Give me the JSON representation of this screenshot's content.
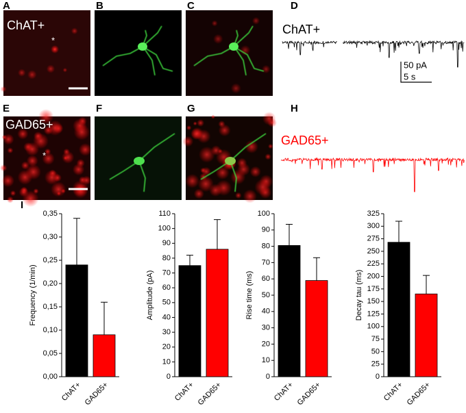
{
  "panels": {
    "labels": [
      "A",
      "B",
      "C",
      "D",
      "E",
      "F",
      "G",
      "H",
      "I"
    ],
    "chat_image_label": "ChAT+",
    "gad_image_label": "GAD65+",
    "chat_trace_label": "ChAT+",
    "gad_trace_label": "GAD65+",
    "asterisks": [
      "*",
      "*"
    ],
    "scale_current": "50 pA",
    "scale_time": "5 s"
  },
  "chart_data": [
    {
      "type": "bar",
      "y_label": "Frequency (1/min)",
      "categories": [
        "ChAT+",
        "GAD65+"
      ],
      "values": [
        0.24,
        0.09
      ],
      "errors": [
        0.1,
        0.07
      ],
      "colors": [
        "#000000",
        "#ff0000"
      ],
      "ylim": [
        0,
        0.35
      ],
      "yticks": [
        {
          "value": 0,
          "label": "0,00"
        },
        {
          "value": 0.05,
          "label": "0,05"
        },
        {
          "value": 0.1,
          "label": "0,10"
        },
        {
          "value": 0.15,
          "label": "0,15"
        },
        {
          "value": 0.2,
          "label": "0,20"
        },
        {
          "value": 0.25,
          "label": "0,25"
        },
        {
          "value": 0.3,
          "label": "0,30"
        },
        {
          "value": 0.35,
          "label": "0,35"
        }
      ]
    },
    {
      "type": "bar",
      "y_label": "Amplitude (pA)",
      "categories": [
        "ChAT+",
        "GAD65+"
      ],
      "values": [
        75,
        86
      ],
      "errors": [
        7,
        20
      ],
      "colors": [
        "#000000",
        "#ff0000"
      ],
      "ylim": [
        0,
        110
      ],
      "yticks": [
        0,
        10,
        20,
        30,
        40,
        50,
        60,
        70,
        80,
        90,
        100,
        110
      ]
    },
    {
      "type": "bar",
      "y_label": "Rise time (ms)",
      "categories": [
        "ChAT+",
        "GAD65+"
      ],
      "values": [
        80.5,
        59
      ],
      "errors": [
        13,
        14
      ],
      "colors": [
        "#000000",
        "#ff0000"
      ],
      "ylim": [
        0,
        100
      ],
      "yticks": [
        0,
        10,
        20,
        30,
        40,
        50,
        60,
        70,
        80,
        90,
        100
      ]
    },
    {
      "type": "bar",
      "y_label": "Decay tau (ms)",
      "categories": [
        "ChAT+",
        "GAD65+"
      ],
      "values": [
        268,
        165
      ],
      "errors": [
        42,
        37
      ],
      "colors": [
        "#000000",
        "#ff0000"
      ],
      "ylim": [
        0,
        325
      ],
      "yticks": [
        0,
        25,
        50,
        75,
        100,
        125,
        150,
        175,
        200,
        225,
        250,
        275,
        300,
        325
      ]
    }
  ]
}
